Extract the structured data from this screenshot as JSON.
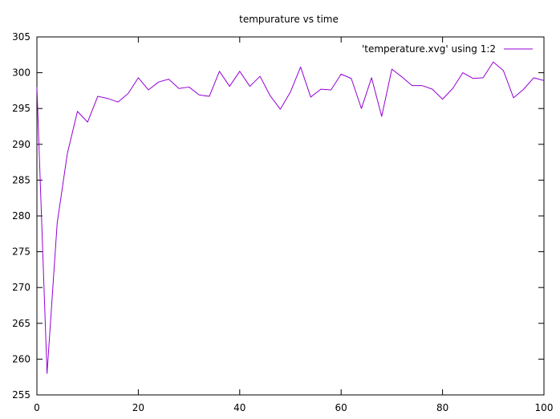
{
  "chart_data": {
    "type": "line",
    "title": "tempurature vs time",
    "xlabel": "",
    "ylabel": "",
    "xlim": [
      0,
      100
    ],
    "ylim": [
      255,
      305
    ],
    "x_ticks": [
      0,
      20,
      40,
      60,
      80,
      100
    ],
    "y_ticks": [
      255,
      260,
      265,
      270,
      275,
      280,
      285,
      290,
      295,
      300,
      305
    ],
    "grid": false,
    "legend_position": "top-right",
    "series": [
      {
        "name": "'temperature.xvg' using 1:2",
        "color": "#9400d3",
        "x": [
          0,
          2,
          4,
          6,
          8,
          10,
          12,
          14,
          16,
          18,
          20,
          22,
          24,
          26,
          28,
          30,
          32,
          34,
          36,
          38,
          40,
          42,
          44,
          46,
          48,
          50,
          52,
          54,
          56,
          58,
          60,
          62,
          64,
          66,
          68,
          70,
          72,
          74,
          76,
          78,
          80,
          82,
          84,
          86,
          88,
          90,
          92,
          94,
          96,
          98,
          100
        ],
        "y": [
          298.0,
          258.0,
          279.0,
          288.7,
          294.6,
          293.1,
          296.7,
          296.4,
          295.9,
          297.1,
          299.3,
          297.6,
          298.7,
          299.1,
          297.8,
          298.0,
          296.9,
          296.7,
          300.2,
          298.1,
          300.2,
          298.1,
          299.5,
          296.8,
          294.9,
          297.3,
          300.8,
          296.6,
          297.7,
          297.6,
          299.8,
          299.2,
          295.0,
          299.3,
          293.9,
          300.5,
          299.4,
          298.2,
          298.2,
          297.7,
          296.3,
          297.8,
          300.0,
          299.2,
          299.3,
          301.5,
          300.3,
          296.5,
          297.7,
          299.3,
          298.9
        ]
      }
    ]
  }
}
